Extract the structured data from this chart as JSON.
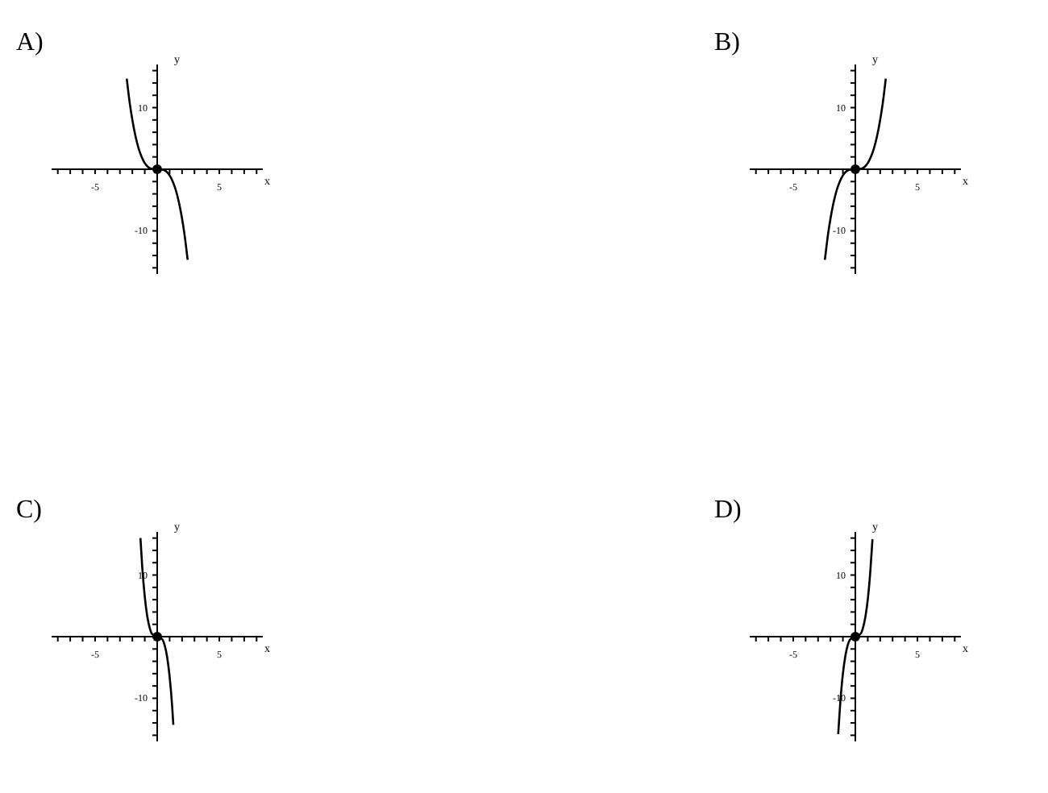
{
  "chart_data": [
    {
      "type": "line",
      "title": "A)",
      "xlabel": "x",
      "ylabel": "y",
      "xlim": [
        -8.5,
        8.5
      ],
      "ylim": [
        -17,
        17
      ],
      "xticks": [
        {
          "value": -8,
          "label": null
        },
        {
          "value": -7,
          "label": null
        },
        {
          "value": -6,
          "label": null
        },
        {
          "value": -5,
          "label": "-5"
        },
        {
          "value": -4,
          "label": null
        },
        {
          "value": -3,
          "label": null
        },
        {
          "value": -2,
          "label": null
        },
        {
          "value": -1,
          "label": null
        },
        {
          "value": 1,
          "label": null
        },
        {
          "value": 2,
          "label": null
        },
        {
          "value": 3,
          "label": null
        },
        {
          "value": 4,
          "label": null
        },
        {
          "value": 5,
          "label": "5"
        },
        {
          "value": 6,
          "label": null
        },
        {
          "value": 7,
          "label": null
        },
        {
          "value": 8,
          "label": null
        }
      ],
      "yticks": [
        {
          "value": -16,
          "label": null
        },
        {
          "value": -14,
          "label": null
        },
        {
          "value": -12,
          "label": null
        },
        {
          "value": -10,
          "label": "-10"
        },
        {
          "value": -8,
          "label": null
        },
        {
          "value": -6,
          "label": null
        },
        {
          "value": -4,
          "label": null
        },
        {
          "value": -2,
          "label": null
        },
        {
          "value": 2,
          "label": null
        },
        {
          "value": 4,
          "label": null
        },
        {
          "value": 6,
          "label": null
        },
        {
          "value": 8,
          "label": null
        },
        {
          "value": 10,
          "label": "10"
        },
        {
          "value": 12,
          "label": null
        },
        {
          "value": 14,
          "label": null
        },
        {
          "value": 16,
          "label": null
        }
      ],
      "series": [
        {
          "type": "line",
          "color": "#000000",
          "marker": "none",
          "x": [
            -2.45,
            -2.2,
            -2,
            -1.75,
            -1.5,
            -1.25,
            -1,
            -0.75,
            -0.5,
            0,
            0.5,
            0.75,
            1,
            1.25,
            1.5,
            1.75,
            2,
            2.2,
            2.45
          ],
          "values": [
            14.7,
            10.6,
            8,
            5.4,
            3.4,
            2,
            1,
            0.4,
            0.1,
            0,
            -0.1,
            -0.4,
            -1,
            -2,
            -3.4,
            -5.4,
            -8,
            -10.6,
            -14.7
          ]
        },
        {
          "type": "scatter",
          "color": "#000000",
          "marker": "circle",
          "x": [
            0
          ],
          "values": [
            0
          ]
        }
      ]
    },
    {
      "type": "line",
      "title": "B)",
      "xlabel": "x",
      "ylabel": "y",
      "xlim": [
        -8.5,
        8.5
      ],
      "ylim": [
        -17,
        17
      ],
      "xticks": [
        {
          "value": -8,
          "label": null
        },
        {
          "value": -7,
          "label": null
        },
        {
          "value": -6,
          "label": null
        },
        {
          "value": -5,
          "label": "-5"
        },
        {
          "value": -4,
          "label": null
        },
        {
          "value": -3,
          "label": null
        },
        {
          "value": -2,
          "label": null
        },
        {
          "value": -1,
          "label": null
        },
        {
          "value": 1,
          "label": null
        },
        {
          "value": 2,
          "label": null
        },
        {
          "value": 3,
          "label": null
        },
        {
          "value": 4,
          "label": null
        },
        {
          "value": 5,
          "label": "5"
        },
        {
          "value": 6,
          "label": null
        },
        {
          "value": 7,
          "label": null
        },
        {
          "value": 8,
          "label": null
        }
      ],
      "yticks": [
        {
          "value": -16,
          "label": null
        },
        {
          "value": -14,
          "label": null
        },
        {
          "value": -12,
          "label": null
        },
        {
          "value": -10,
          "label": "-10"
        },
        {
          "value": -8,
          "label": null
        },
        {
          "value": -6,
          "label": null
        },
        {
          "value": -4,
          "label": null
        },
        {
          "value": -2,
          "label": null
        },
        {
          "value": 2,
          "label": null
        },
        {
          "value": 4,
          "label": null
        },
        {
          "value": 6,
          "label": null
        },
        {
          "value": 8,
          "label": null
        },
        {
          "value": 10,
          "label": "10"
        },
        {
          "value": 12,
          "label": null
        },
        {
          "value": 14,
          "label": null
        },
        {
          "value": 16,
          "label": null
        }
      ],
      "series": [
        {
          "type": "line",
          "color": "#000000",
          "marker": "none",
          "x": [
            -2.45,
            -2.2,
            -2,
            -1.75,
            -1.5,
            -1.25,
            -1,
            -0.75,
            -0.5,
            0,
            0.5,
            0.75,
            1,
            1.25,
            1.5,
            1.75,
            2,
            2.2,
            2.45
          ],
          "values": [
            -14.7,
            -10.6,
            -8,
            -5.4,
            -3.4,
            -2,
            -1,
            -0.4,
            -0.1,
            0,
            0.1,
            0.4,
            1,
            2,
            3.4,
            5.4,
            8,
            10.6,
            14.7
          ]
        },
        {
          "type": "scatter",
          "color": "#000000",
          "marker": "circle",
          "x": [
            0
          ],
          "values": [
            0
          ]
        }
      ]
    },
    {
      "type": "line",
      "title": "C)",
      "xlabel": "x",
      "ylabel": "y",
      "xlim": [
        -8.5,
        8.5
      ],
      "ylim": [
        -17,
        17
      ],
      "xticks": [
        {
          "value": -8,
          "label": null
        },
        {
          "value": -7,
          "label": null
        },
        {
          "value": -6,
          "label": null
        },
        {
          "value": -5,
          "label": "-5"
        },
        {
          "value": -4,
          "label": null
        },
        {
          "value": -3,
          "label": null
        },
        {
          "value": -2,
          "label": null
        },
        {
          "value": -1,
          "label": null
        },
        {
          "value": 1,
          "label": null
        },
        {
          "value": 2,
          "label": null
        },
        {
          "value": 3,
          "label": null
        },
        {
          "value": 4,
          "label": null
        },
        {
          "value": 5,
          "label": "5"
        },
        {
          "value": 6,
          "label": null
        },
        {
          "value": 7,
          "label": null
        },
        {
          "value": 8,
          "label": null
        }
      ],
      "yticks": [
        {
          "value": -16,
          "label": null
        },
        {
          "value": -14,
          "label": null
        },
        {
          "value": -12,
          "label": null
        },
        {
          "value": -10,
          "label": "-10"
        },
        {
          "value": -8,
          "label": null
        },
        {
          "value": -6,
          "label": null
        },
        {
          "value": -4,
          "label": null
        },
        {
          "value": -2,
          "label": null
        },
        {
          "value": 2,
          "label": null
        },
        {
          "value": 4,
          "label": null
        },
        {
          "value": 6,
          "label": null
        },
        {
          "value": 8,
          "label": null
        },
        {
          "value": 10,
          "label": "10"
        },
        {
          "value": 12,
          "label": null
        },
        {
          "value": 14,
          "label": null
        },
        {
          "value": 16,
          "label": null
        }
      ],
      "series": [
        {
          "type": "line",
          "color": "#000000",
          "marker": "none",
          "x": [
            -1.35,
            -1.2,
            -1,
            -0.8,
            -0.6,
            -0.4,
            0,
            0.4,
            0.6,
            0.8,
            1,
            1.2,
            1.3
          ],
          "values": [
            16,
            11.2,
            6.5,
            3.3,
            1.4,
            0.4,
            0,
            -0.4,
            -1.4,
            -3.3,
            -6.5,
            -11.2,
            -14.3
          ]
        },
        {
          "type": "scatter",
          "color": "#000000",
          "marker": "circle",
          "x": [
            0
          ],
          "values": [
            0
          ]
        }
      ]
    },
    {
      "type": "line",
      "title": "D)",
      "xlabel": "x",
      "ylabel": "y",
      "xlim": [
        -8.5,
        8.5
      ],
      "ylim": [
        -17,
        17
      ],
      "xticks": [
        {
          "value": -8,
          "label": null
        },
        {
          "value": -7,
          "label": null
        },
        {
          "value": -6,
          "label": null
        },
        {
          "value": -5,
          "label": "-5"
        },
        {
          "value": -4,
          "label": null
        },
        {
          "value": -3,
          "label": null
        },
        {
          "value": -2,
          "label": null
        },
        {
          "value": -1,
          "label": null
        },
        {
          "value": 1,
          "label": null
        },
        {
          "value": 2,
          "label": null
        },
        {
          "value": 3,
          "label": null
        },
        {
          "value": 4,
          "label": null
        },
        {
          "value": 5,
          "label": "5"
        },
        {
          "value": 6,
          "label": null
        },
        {
          "value": 7,
          "label": null
        },
        {
          "value": 8,
          "label": null
        }
      ],
      "yticks": [
        {
          "value": -16,
          "label": null
        },
        {
          "value": -14,
          "label": null
        },
        {
          "value": -12,
          "label": null
        },
        {
          "value": -10,
          "label": "-10"
        },
        {
          "value": -8,
          "label": null
        },
        {
          "value": -6,
          "label": null
        },
        {
          "value": -4,
          "label": null
        },
        {
          "value": -2,
          "label": null
        },
        {
          "value": 2,
          "label": null
        },
        {
          "value": 4,
          "label": null
        },
        {
          "value": 6,
          "label": null
        },
        {
          "value": 8,
          "label": null
        },
        {
          "value": 10,
          "label": "10"
        },
        {
          "value": 12,
          "label": null
        },
        {
          "value": 14,
          "label": null
        },
        {
          "value": 16,
          "label": null
        }
      ],
      "series": [
        {
          "type": "line",
          "color": "#000000",
          "marker": "none",
          "x": [
            -1.38,
            -1.2,
            -1,
            -0.8,
            -0.6,
            -0.4,
            0,
            0.4,
            0.6,
            0.8,
            1,
            1.2,
            1.38
          ],
          "values": [
            -15.8,
            -10.4,
            -6,
            -3.1,
            -1.3,
            -0.4,
            0,
            0.4,
            1.3,
            3.1,
            6,
            10.4,
            15.8
          ]
        },
        {
          "type": "scatter",
          "color": "#000000",
          "marker": "circle",
          "x": [
            0
          ],
          "values": [
            0
          ]
        }
      ]
    }
  ]
}
